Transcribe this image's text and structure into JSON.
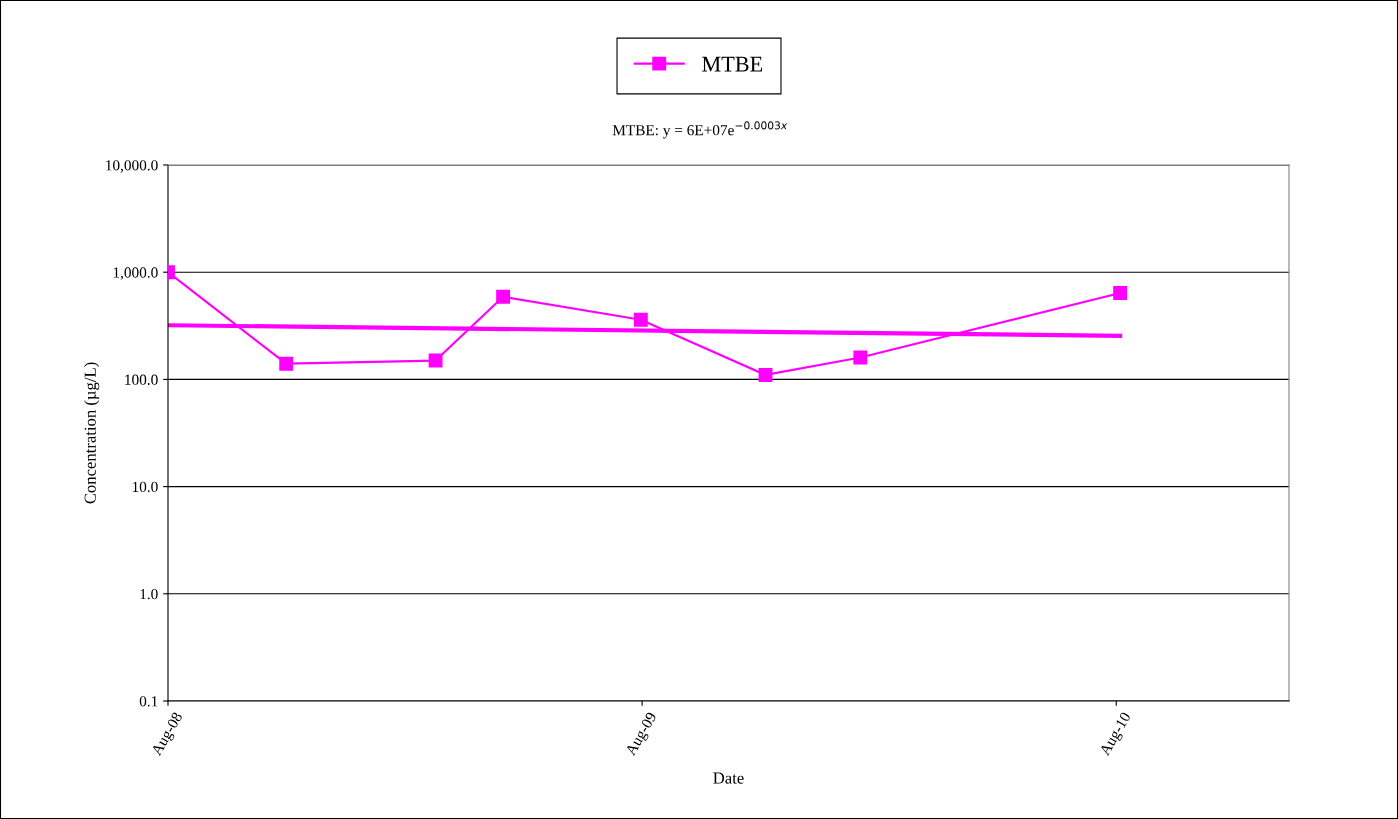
{
  "chart_data": {
    "type": "line",
    "xlabel": "Date",
    "ylabel": "Concentration (µg/L)",
    "annotations": [
      "MTBE: y = 6E+07e$^{−0.0003x}$"
    ],
    "series": [
      {
        "name": "MTBE",
        "color": "#ff00ff",
        "marker": "square",
        "x": [
          "2008-08-01",
          "2008-10-31",
          "2009-02-23",
          "2009-04-16",
          "2009-07-31",
          "2009-11-04",
          "2010-01-16",
          "2010-08-04"
        ],
        "values": [
          1000,
          140,
          150,
          590,
          360,
          110,
          160,
          640
        ]
      },
      {
        "type": "line",
        "color": "#ff00ff",
        "marker": "none",
        "x": [
          "2008-08-01",
          "2010-08-04"
        ],
        "values": [
          320,
          255
        ]
      }
    ],
    "log": "y",
    "ylim": [
      0.1,
      10000
    ],
    "yticks": [
      {
        "value": 0.1,
        "label": "0.1"
      },
      {
        "value": 1,
        "label": "1.0"
      },
      {
        "value": 10,
        "label": "10.0"
      },
      {
        "value": 100,
        "label": "100.0"
      },
      {
        "value": 1000,
        "label": "1,000.0"
      },
      {
        "value": 10000,
        "label": "10,000.0"
      }
    ],
    "xlim": [
      "2008-08-01",
      "2010-12-12"
    ],
    "xticks": [
      {
        "value": "2008-08-01",
        "label": "Aug-08"
      },
      {
        "value": "2009-08-01",
        "label": "Aug-09"
      },
      {
        "value": "2010-08-01",
        "label": "Aug-10"
      }
    ],
    "grid": "y",
    "legend": "top"
  }
}
